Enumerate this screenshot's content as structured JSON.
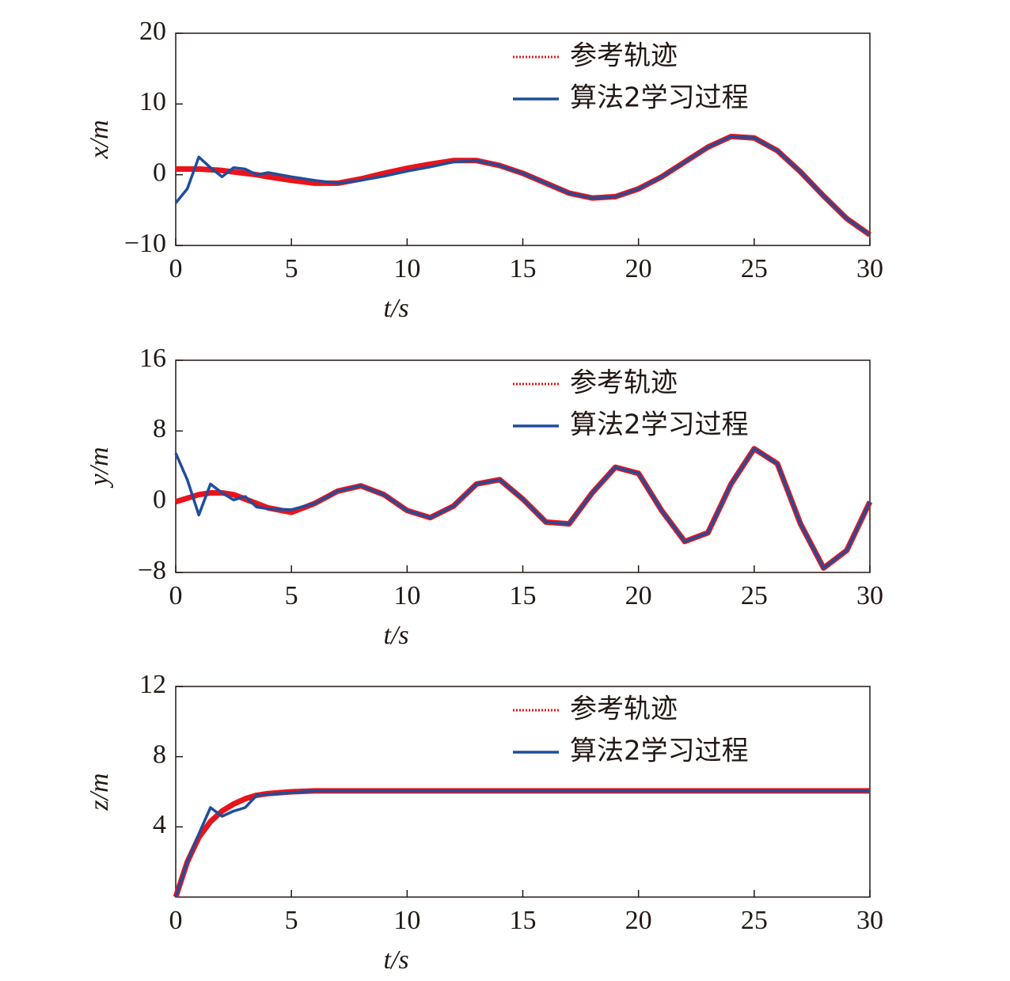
{
  "chart_data": [
    {
      "type": "line",
      "xlabel": "t/s",
      "ylabel": "x/m",
      "x": [
        0,
        0.5,
        1,
        1.5,
        2,
        2.5,
        3,
        3.5,
        4,
        5,
        6,
        7,
        8,
        9,
        10,
        11,
        12,
        13,
        14,
        15,
        16,
        17,
        18,
        19,
        20,
        21,
        22,
        23,
        24,
        25,
        26,
        27,
        28,
        29,
        30
      ],
      "series": [
        {
          "name": "参考轨迹",
          "color": "#e8141c",
          "style": "dotted",
          "values": [
            0.8,
            0.8,
            0.8,
            0.7,
            0.6,
            0.4,
            0.2,
            0.0,
            -0.3,
            -0.8,
            -1.2,
            -1.2,
            -0.6,
            0.2,
            0.9,
            1.5,
            2.0,
            2.0,
            1.3,
            0.2,
            -1.2,
            -2.6,
            -3.3,
            -3.1,
            -2.0,
            -0.3,
            1.8,
            3.9,
            5.4,
            5.2,
            3.4,
            0.4,
            -3.0,
            -6.2,
            -8.5
          ]
        },
        {
          "name": "算法2学习过程",
          "color": "#1f4e9c",
          "style": "solid",
          "values": [
            -4,
            -2,
            2.5,
            1.0,
            -0.3,
            1.0,
            0.8,
            0.0,
            0.3,
            -0.3,
            -0.8,
            -1.2,
            -0.8,
            -0.2,
            0.5,
            1.1,
            1.8,
            2.0,
            1.3,
            0.2,
            -1.2,
            -2.6,
            -3.3,
            -3.1,
            -2.0,
            -0.3,
            1.8,
            3.9,
            5.4,
            5.2,
            3.4,
            0.4,
            -3.0,
            -6.2,
            -8.5
          ]
        }
      ],
      "xlim": [
        0,
        30
      ],
      "xticks": [
        0,
        5,
        10,
        15,
        20,
        25,
        30
      ],
      "ylim": [
        -10,
        20
      ],
      "yticks": [
        {
          "value": -10,
          "label": "−10"
        },
        0,
        10,
        20
      ]
    },
    {
      "type": "line",
      "xlabel": "t/s",
      "ylabel": "y/m",
      "x": [
        0,
        0.5,
        1,
        1.5,
        2,
        2.5,
        3,
        3.5,
        4,
        5,
        6,
        7,
        8,
        9,
        10,
        11,
        12,
        13,
        14,
        15,
        16,
        17,
        18,
        19,
        20,
        21,
        22,
        23,
        24,
        25,
        26,
        27,
        28,
        29,
        30
      ],
      "series": [
        {
          "name": "参考轨迹",
          "color": "#e8141c",
          "style": "dotted",
          "values": [
            0,
            0.4,
            0.8,
            1.0,
            1.0,
            0.8,
            0.3,
            -0.2,
            -0.7,
            -1.2,
            -0.2,
            1.2,
            1.8,
            0.8,
            -1.0,
            -1.8,
            -0.5,
            2.0,
            2.5,
            0.3,
            -2.3,
            -2.5,
            1.0,
            3.9,
            3.2,
            -1.0,
            -4.5,
            -3.5,
            2.0,
            6.0,
            4.3,
            -2.5,
            -7.5,
            -5.5,
            0
          ]
        },
        {
          "name": "算法2学习过程",
          "color": "#1f4e9c",
          "style": "solid",
          "values": [
            5.5,
            2.5,
            -1.5,
            2.0,
            1.0,
            0.2,
            0.6,
            -0.6,
            -0.8,
            -0.9,
            -0.2,
            1.2,
            1.8,
            0.8,
            -1.0,
            -1.8,
            -0.5,
            2.0,
            2.5,
            0.3,
            -2.3,
            -2.5,
            1.0,
            3.9,
            3.2,
            -1.0,
            -4.5,
            -3.5,
            2.0,
            6.0,
            4.3,
            -2.5,
            -7.5,
            -5.5,
            0
          ]
        }
      ],
      "xlim": [
        0,
        30
      ],
      "xticks": [
        0,
        5,
        10,
        15,
        20,
        25,
        30
      ],
      "ylim": [
        -8,
        16
      ],
      "yticks": [
        {
          "value": -8,
          "label": "−8"
        },
        0,
        8,
        16
      ]
    },
    {
      "type": "line",
      "xlabel": "t/s",
      "ylabel": "z/m",
      "x": [
        0,
        0.5,
        1,
        1.5,
        2,
        2.5,
        3,
        3.5,
        4,
        5,
        6,
        7,
        8,
        9,
        10,
        11,
        12,
        13,
        14,
        15,
        16,
        17,
        18,
        19,
        20,
        21,
        22,
        23,
        24,
        25,
        26,
        27,
        28,
        29,
        30
      ],
      "series": [
        {
          "name": "参考轨迹",
          "color": "#e8141c",
          "style": "dotted",
          "values": [
            0,
            2.0,
            3.4,
            4.3,
            4.9,
            5.3,
            5.6,
            5.8,
            5.9,
            6.0,
            6.05,
            6.05,
            6.05,
            6.05,
            6.05,
            6.05,
            6.05,
            6.05,
            6.05,
            6.05,
            6.05,
            6.05,
            6.05,
            6.05,
            6.05,
            6.05,
            6.05,
            6.05,
            6.05,
            6.05,
            6.05,
            6.05,
            6.05,
            6.05,
            6.05
          ]
        },
        {
          "name": "算法2学习过程",
          "color": "#1f4e9c",
          "style": "solid",
          "values": [
            0,
            2.0,
            3.6,
            5.1,
            4.6,
            4.9,
            5.1,
            5.8,
            5.85,
            5.95,
            6.05,
            6.05,
            6.05,
            6.05,
            6.05,
            6.05,
            6.05,
            6.05,
            6.05,
            6.05,
            6.05,
            6.05,
            6.05,
            6.05,
            6.05,
            6.05,
            6.05,
            6.05,
            6.05,
            6.05,
            6.05,
            6.05,
            6.05,
            6.05,
            6.05
          ]
        }
      ],
      "xlim": [
        0,
        30
      ],
      "xticks": [
        0,
        5,
        10,
        15,
        20,
        25,
        30
      ],
      "ylim": [
        0,
        12
      ],
      "yticks": [
        4,
        8,
        12
      ]
    }
  ]
}
